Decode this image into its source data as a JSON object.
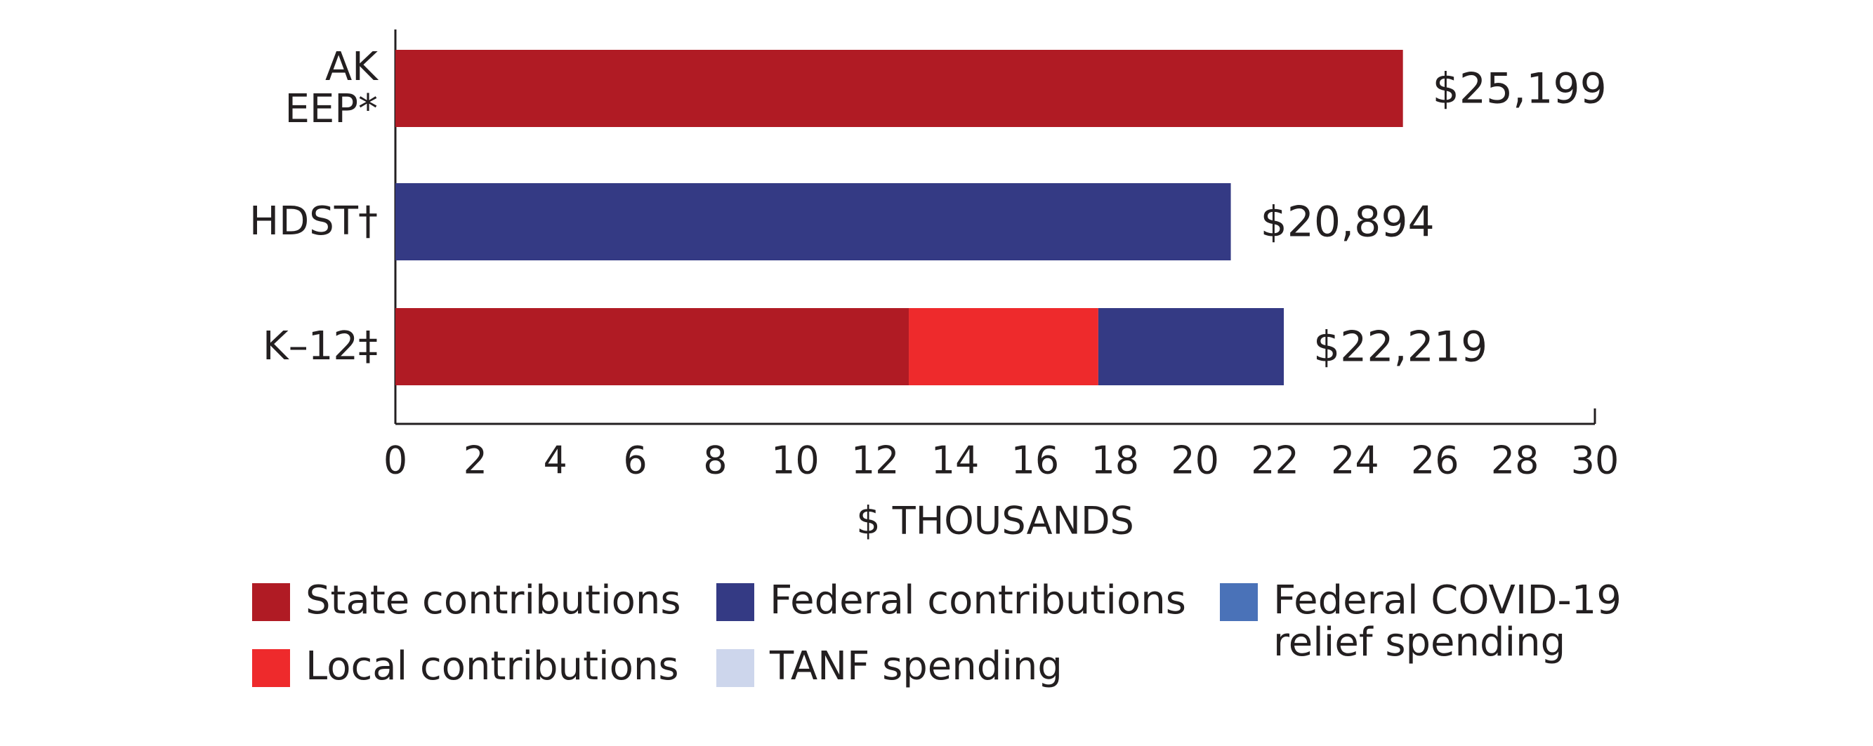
{
  "chart_data": {
    "type": "stacked-barh",
    "categories": [
      "AK\nEEP*",
      "HDST†",
      "K–12‡"
    ],
    "series": [
      {
        "name": "State contributions",
        "color": "#b01b24",
        "values": [
          25.199,
          null,
          12.84
        ]
      },
      {
        "name": "Local contributions",
        "color": "#ee2a2c",
        "values": [
          null,
          null,
          4.74
        ]
      },
      {
        "name": "Federal contributions",
        "color": "#343a84",
        "values": [
          null,
          20.894,
          4.64
        ]
      },
      {
        "name": "Federal COVID-19\nrelief spending",
        "color": "#4a72b8",
        "values": [
          null,
          null,
          null
        ]
      },
      {
        "name": "TANF spending",
        "color": "#cdd6ec",
        "values": [
          null,
          null,
          null
        ]
      }
    ],
    "totals": [
      25.199,
      20.894,
      22.219
    ],
    "total_labels": [
      "$25,199",
      "$20,894",
      "$22,219"
    ],
    "xlabel": "$ THOUSANDS",
    "xlim": [
      0,
      30
    ],
    "xticks": [
      0,
      2,
      4,
      6,
      8,
      10,
      12,
      14,
      16,
      18,
      20,
      22,
      24,
      26,
      28,
      30
    ]
  }
}
